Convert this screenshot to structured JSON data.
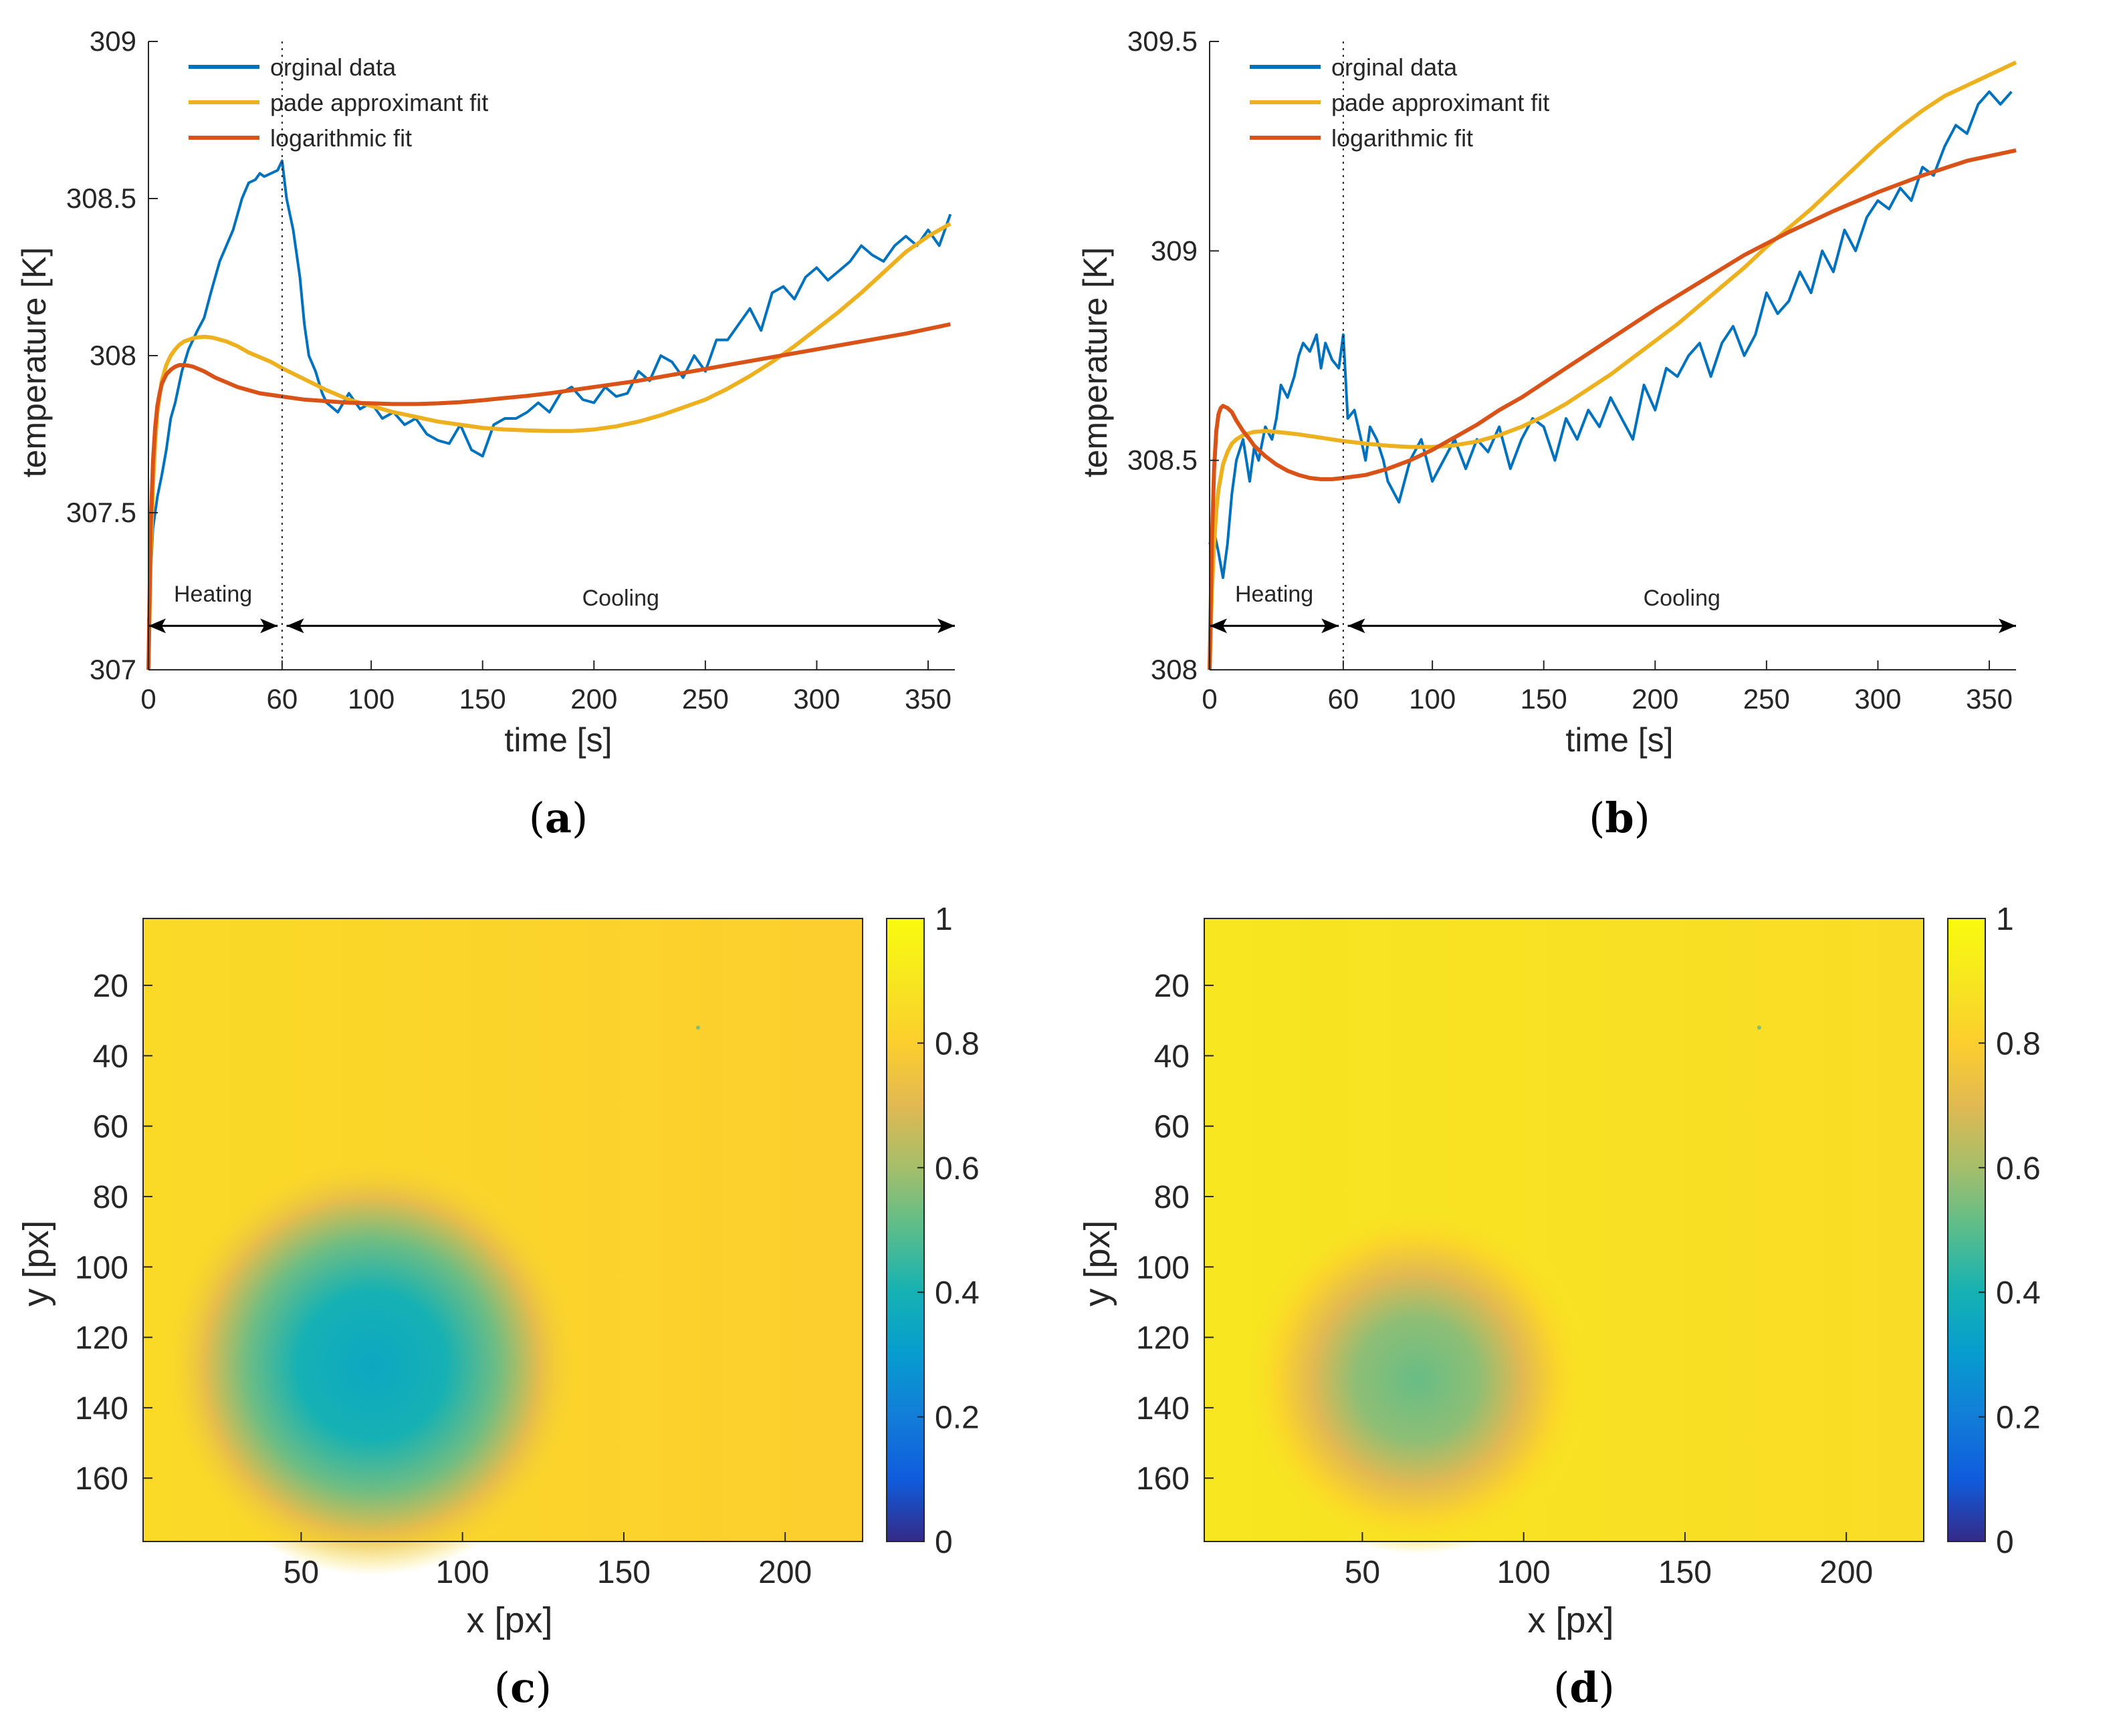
{
  "colors": {
    "original": "#0072BD",
    "pade": "#EDB120",
    "log": "#D95319",
    "axis": "#262626"
  },
  "chart_data": [
    {
      "panel": "a",
      "type": "line",
      "caption_letter": "a",
      "xlabel": "time [s]",
      "ylabel": "temperature [K]",
      "xlim": [
        0,
        362
      ],
      "ylim": [
        307,
        309
      ],
      "xticks": [
        0,
        60,
        100,
        150,
        200,
        250,
        300,
        350
      ],
      "xtick_labels": [
        "0",
        "60",
        "100",
        "150",
        "200",
        "250",
        "300",
        "350"
      ],
      "yticks": [
        307,
        307.5,
        308,
        308.5,
        309
      ],
      "ytick_labels": [
        "307",
        "307.5",
        "308",
        "308.5",
        "309"
      ],
      "legend": [
        "orginal data",
        "pade approximant fit",
        "logarithmic fit"
      ],
      "annotations": {
        "heating": "Heating",
        "cooling": "Cooling",
        "divider_x": 60,
        "arrow_y": 307.14,
        "heating_range": [
          0,
          58
        ],
        "cooling_range": [
          62,
          362
        ]
      },
      "series": [
        {
          "name": "orginal data",
          "key": "original",
          "x": [
            0,
            2,
            4,
            6,
            8,
            10,
            12,
            15,
            18,
            20,
            22,
            25,
            28,
            30,
            32,
            35,
            38,
            40,
            42,
            45,
            48,
            50,
            52,
            55,
            58,
            60,
            62,
            65,
            68,
            70,
            72,
            75,
            78,
            80,
            85,
            90,
            95,
            100,
            105,
            110,
            115,
            120,
            125,
            130,
            135,
            140,
            145,
            150,
            155,
            160,
            165,
            170,
            175,
            180,
            185,
            190,
            195,
            200,
            205,
            210,
            215,
            220,
            225,
            230,
            235,
            240,
            245,
            250,
            255,
            260,
            265,
            270,
            275,
            280,
            285,
            290,
            295,
            300,
            305,
            310,
            315,
            320,
            325,
            330,
            335,
            340,
            345,
            350,
            355,
            360
          ],
          "y": [
            307.15,
            307.45,
            307.55,
            307.62,
            307.7,
            307.8,
            307.85,
            307.95,
            308.02,
            308.05,
            308.08,
            308.12,
            308.2,
            308.25,
            308.3,
            308.35,
            308.4,
            308.45,
            308.5,
            308.55,
            308.56,
            308.58,
            308.57,
            308.58,
            308.59,
            308.62,
            308.5,
            308.4,
            308.25,
            308.1,
            308.0,
            307.95,
            307.88,
            307.85,
            307.82,
            307.88,
            307.83,
            307.85,
            307.8,
            307.82,
            307.78,
            307.8,
            307.75,
            307.73,
            307.72,
            307.78,
            307.7,
            307.68,
            307.78,
            307.8,
            307.8,
            307.82,
            307.85,
            307.82,
            307.88,
            307.9,
            307.86,
            307.85,
            307.9,
            307.87,
            307.88,
            307.95,
            307.92,
            308.0,
            307.98,
            307.93,
            308.0,
            307.95,
            308.05,
            308.05,
            308.1,
            308.15,
            308.08,
            308.2,
            308.22,
            308.18,
            308.25,
            308.28,
            308.24,
            308.27,
            308.3,
            308.35,
            308.32,
            308.3,
            308.35,
            308.38,
            308.35,
            308.4,
            308.35,
            308.45
          ]
        },
        {
          "name": "pade approximant fit",
          "key": "pade",
          "x": [
            0,
            1,
            2,
            3,
            4,
            6,
            8,
            10,
            12,
            14,
            16,
            18,
            20,
            22,
            25,
            28,
            30,
            35,
            40,
            45,
            50,
            55,
            60,
            70,
            80,
            90,
            100,
            110,
            120,
            130,
            140,
            150,
            160,
            170,
            180,
            190,
            200,
            210,
            220,
            230,
            240,
            250,
            260,
            270,
            280,
            290,
            300,
            310,
            320,
            330,
            340,
            350,
            360
          ],
          "y": [
            307.0,
            307.35,
            307.58,
            307.72,
            307.82,
            307.92,
            307.97,
            308.0,
            308.02,
            308.035,
            308.045,
            308.05,
            308.055,
            308.058,
            308.06,
            308.058,
            308.055,
            308.045,
            308.03,
            308.01,
            307.995,
            307.98,
            307.96,
            307.925,
            307.89,
            307.86,
            307.84,
            307.82,
            307.805,
            307.79,
            307.78,
            307.77,
            307.765,
            307.762,
            307.76,
            307.76,
            307.765,
            307.775,
            307.79,
            307.81,
            307.835,
            307.86,
            307.895,
            307.935,
            307.98,
            308.03,
            308.085,
            308.14,
            308.2,
            308.265,
            308.33,
            308.38,
            308.42
          ]
        },
        {
          "name": "logarithmic fit",
          "key": "log",
          "x": [
            0,
            1,
            2,
            3,
            4,
            5,
            6,
            8,
            10,
            12,
            14,
            16,
            18,
            20,
            25,
            30,
            35,
            40,
            50,
            60,
            70,
            80,
            90,
            100,
            110,
            120,
            130,
            140,
            150,
            160,
            170,
            180,
            190,
            200,
            220,
            240,
            260,
            280,
            300,
            320,
            340,
            360
          ],
          "y": [
            307.0,
            307.45,
            307.66,
            307.77,
            307.84,
            307.88,
            307.91,
            307.94,
            307.955,
            307.965,
            307.97,
            307.97,
            307.968,
            307.965,
            307.95,
            307.93,
            307.915,
            307.9,
            307.88,
            307.87,
            307.86,
            307.855,
            307.85,
            307.848,
            307.846,
            307.846,
            307.848,
            307.852,
            307.858,
            307.865,
            307.872,
            307.88,
            307.89,
            307.9,
            307.92,
            307.945,
            307.97,
            307.995,
            308.02,
            308.045,
            308.07,
            308.1
          ]
        }
      ]
    },
    {
      "panel": "b",
      "type": "line",
      "caption_letter": "b",
      "xlabel": "time [s]",
      "ylabel": "temperature [K]",
      "xlim": [
        0,
        362
      ],
      "ylim": [
        308,
        309.5
      ],
      "xticks": [
        0,
        60,
        100,
        150,
        200,
        250,
        300,
        350
      ],
      "xtick_labels": [
        "0",
        "60",
        "100",
        "150",
        "200",
        "250",
        "300",
        "350"
      ],
      "yticks": [
        308,
        308.5,
        309,
        309.5
      ],
      "ytick_labels": [
        "308",
        "308.5",
        "309",
        "309.5"
      ],
      "legend": [
        "orginal data",
        "pade approximant fit",
        "logarithmic fit"
      ],
      "annotations": {
        "heating": "Heating",
        "cooling": "Cooling",
        "divider_x": 60,
        "arrow_y": 308.105,
        "heating_range": [
          0,
          58
        ],
        "cooling_range": [
          62,
          362
        ]
      },
      "series": [
        {
          "name": "orginal data",
          "key": "original",
          "x": [
            0,
            2,
            4,
            6,
            8,
            10,
            12,
            15,
            18,
            20,
            22,
            25,
            28,
            30,
            32,
            35,
            38,
            40,
            42,
            45,
            48,
            50,
            52,
            55,
            58,
            60,
            62,
            65,
            68,
            70,
            72,
            75,
            78,
            80,
            85,
            90,
            95,
            100,
            105,
            110,
            115,
            120,
            125,
            130,
            135,
            140,
            145,
            150,
            155,
            160,
            165,
            170,
            175,
            180,
            185,
            190,
            195,
            200,
            205,
            210,
            215,
            220,
            225,
            230,
            235,
            240,
            245,
            250,
            255,
            260,
            265,
            270,
            275,
            280,
            285,
            290,
            295,
            300,
            305,
            310,
            315,
            320,
            325,
            330,
            335,
            340,
            345,
            350,
            355,
            360
          ],
          "y": [
            308.3,
            308.33,
            308.28,
            308.22,
            308.3,
            308.42,
            308.5,
            308.55,
            308.45,
            308.53,
            308.5,
            308.58,
            308.55,
            308.6,
            308.68,
            308.65,
            308.7,
            308.75,
            308.78,
            308.76,
            308.8,
            308.72,
            308.78,
            308.74,
            308.72,
            308.8,
            308.6,
            308.62,
            308.55,
            308.5,
            308.58,
            308.55,
            308.5,
            308.45,
            308.4,
            308.5,
            308.55,
            308.45,
            308.5,
            308.55,
            308.48,
            308.55,
            308.52,
            308.58,
            308.48,
            308.55,
            308.6,
            308.58,
            308.5,
            308.6,
            308.55,
            308.62,
            308.58,
            308.65,
            308.6,
            308.55,
            308.68,
            308.62,
            308.72,
            308.7,
            308.75,
            308.78,
            308.7,
            308.78,
            308.82,
            308.75,
            308.8,
            308.9,
            308.85,
            308.88,
            308.95,
            308.9,
            309.0,
            308.95,
            309.05,
            309.0,
            309.08,
            309.12,
            309.1,
            309.15,
            309.12,
            309.2,
            309.18,
            309.25,
            309.3,
            309.28,
            309.35,
            309.38,
            309.35,
            309.38
          ]
        },
        {
          "name": "pade approximant fit",
          "key": "pade",
          "x": [
            0,
            1,
            2,
            3,
            4,
            6,
            8,
            10,
            12,
            15,
            18,
            20,
            25,
            30,
            35,
            40,
            45,
            50,
            55,
            60,
            70,
            80,
            90,
            100,
            110,
            120,
            130,
            140,
            150,
            160,
            170,
            180,
            190,
            200,
            210,
            220,
            230,
            240,
            250,
            260,
            270,
            280,
            290,
            300,
            310,
            320,
            330,
            340,
            350,
            362
          ],
          "y": [
            308.0,
            308.18,
            308.3,
            308.38,
            308.43,
            308.49,
            308.52,
            308.54,
            308.55,
            308.56,
            308.565,
            308.568,
            308.57,
            308.568,
            308.565,
            308.562,
            308.558,
            308.554,
            308.55,
            308.546,
            308.54,
            308.535,
            308.532,
            308.532,
            308.536,
            308.545,
            308.56,
            308.58,
            308.605,
            308.635,
            308.67,
            308.705,
            308.745,
            308.785,
            308.825,
            308.87,
            308.915,
            308.96,
            309.01,
            309.055,
            309.1,
            309.15,
            309.2,
            309.25,
            309.295,
            309.335,
            309.37,
            309.395,
            309.42,
            309.45
          ]
        },
        {
          "name": "logarithmic fit",
          "key": "log",
          "x": [
            0,
            1,
            2,
            3,
            4,
            5,
            6,
            8,
            10,
            12,
            15,
            18,
            20,
            25,
            30,
            35,
            40,
            45,
            50,
            55,
            60,
            70,
            80,
            90,
            100,
            110,
            120,
            130,
            140,
            150,
            160,
            170,
            180,
            190,
            200,
            220,
            240,
            260,
            280,
            300,
            320,
            340,
            362
          ],
          "y": [
            308.0,
            308.3,
            308.48,
            308.57,
            308.61,
            308.625,
            308.63,
            308.625,
            308.615,
            308.595,
            308.57,
            308.55,
            308.535,
            308.51,
            308.49,
            308.475,
            308.465,
            308.458,
            308.455,
            308.455,
            308.458,
            308.465,
            308.48,
            308.5,
            308.525,
            308.555,
            308.585,
            308.62,
            308.65,
            308.685,
            308.72,
            308.755,
            308.79,
            308.825,
            308.86,
            308.925,
            308.99,
            309.045,
            309.095,
            309.14,
            309.18,
            309.215,
            309.24
          ]
        }
      ]
    },
    {
      "panel": "c",
      "type": "heatmap",
      "caption_letter": "c",
      "xlabel": "x [px]",
      "ylabel": "y [px]",
      "xlim": [
        1,
        224
      ],
      "ylim": [
        1,
        178
      ],
      "xticks": [
        50,
        100,
        150,
        200
      ],
      "xtick_labels": [
        "50",
        "100",
        "150",
        "200"
      ],
      "yticks": [
        20,
        40,
        60,
        80,
        100,
        120,
        140,
        160
      ],
      "ytick_labels": [
        "20",
        "40",
        "60",
        "80",
        "100",
        "120",
        "140",
        "160"
      ],
      "colorbar": {
        "range": [
          0,
          1
        ],
        "ticks": [
          0,
          0.2,
          0.4,
          0.6,
          0.8,
          1
        ],
        "tick_labels": [
          "0",
          "0.2",
          "0.4",
          "0.6",
          "0.8",
          "1"
        ]
      },
      "background_value": 0.85,
      "background_value_right": 0.8,
      "spot": {
        "x": 72,
        "y": 128,
        "radius": 42,
        "min_value": 0.35
      },
      "defect": {
        "x": 173,
        "y": 32
      }
    },
    {
      "panel": "d",
      "type": "heatmap",
      "caption_letter": "d",
      "xlabel": "x [px]",
      "ylabel": "y [px]",
      "xlim": [
        1,
        224
      ],
      "ylim": [
        1,
        178
      ],
      "xticks": [
        50,
        100,
        150,
        200
      ],
      "xtick_labels": [
        "50",
        "100",
        "150",
        "200"
      ],
      "yticks": [
        20,
        40,
        60,
        80,
        100,
        120,
        140,
        160
      ],
      "ytick_labels": [
        "20",
        "40",
        "60",
        "80",
        "100",
        "120",
        "140",
        "160"
      ],
      "colorbar": {
        "range": [
          0,
          1
        ],
        "ticks": [
          0,
          0.2,
          0.4,
          0.6,
          0.8,
          1
        ],
        "tick_labels": [
          "0",
          "0.2",
          "0.4",
          "0.6",
          "0.8",
          "1"
        ]
      },
      "background_value": 0.9,
      "background_value_right": 0.86,
      "spot": {
        "x": 67,
        "y": 132,
        "radius": 35,
        "min_value": 0.52
      },
      "defect": {
        "x": 173,
        "y": 32
      }
    }
  ]
}
